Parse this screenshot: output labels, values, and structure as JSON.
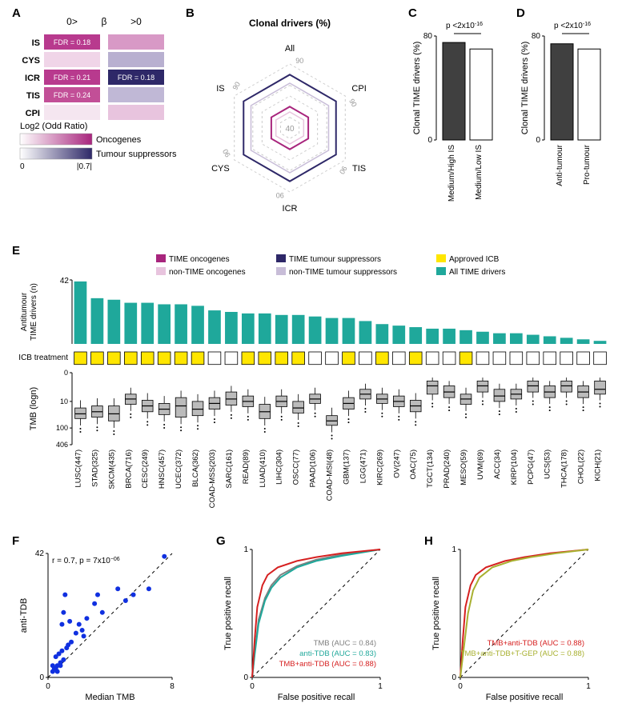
{
  "panelA": {
    "title_left": "0>",
    "title_mid": "β",
    "title_right": ">0",
    "rows": [
      "IS",
      "CYS",
      "ICR",
      "TIS",
      "CPI"
    ],
    "left_colors": [
      "#b83a8e",
      "#f0d5e8",
      "#b83a8e",
      "#c24f97",
      "#f5e6f0"
    ],
    "left_fdr": [
      "FDR = 0.18",
      "",
      "FDR = 0.21",
      "FDR = 0.24",
      ""
    ],
    "right_colors": [
      "#d899c6",
      "#b8b0d0",
      "#2e2868",
      "#c0b8d6",
      "#e8c4de"
    ],
    "right_fdr": [
      "",
      "",
      "FDR = 0.18",
      "",
      ""
    ],
    "legend_title": "Log2 (Odd Ratio)",
    "legend_onco": "Oncogenes",
    "legend_ts": "Tumour suppressors",
    "legend_scale_left": "0",
    "legend_scale_right": "|0.7|",
    "onco_gradient": [
      "#ffffff",
      "#a8257d"
    ],
    "ts_gradient": [
      "#ffffff",
      "#2e2868"
    ]
  },
  "panelB": {
    "title": "Clonal drivers (%)",
    "axes": [
      "All",
      "CPI",
      "TIS",
      "ICR",
      "CYS",
      "IS"
    ],
    "rings": [
      40,
      90
    ],
    "tick_label": "90",
    "center_label": "40",
    "series": [
      {
        "color": "#2e2868",
        "width": 2,
        "values": [
          90,
          90,
          90,
          90,
          90,
          90
        ]
      },
      {
        "color": "#c8bdd8",
        "width": 1.5,
        "values": [
          82,
          82,
          82,
          82,
          82,
          82
        ]
      },
      {
        "color": "#a8257d",
        "width": 2,
        "values": [
          60,
          60,
          60,
          60,
          60,
          60
        ]
      },
      {
        "color": "#e8c4de",
        "width": 1.5,
        "values": [
          55,
          55,
          55,
          55,
          55,
          55
        ]
      }
    ]
  },
  "panelC": {
    "pval": "p <2x10",
    "pval_exp": "-16",
    "ylabel": "Clonal TIME drivers (%)",
    "ymax": 80,
    "bars": [
      {
        "label": "Medium/High IS",
        "value": 75,
        "fill": "#404040"
      },
      {
        "label": "Medium/Low IS",
        "value": 70,
        "fill": "#ffffff"
      }
    ]
  },
  "panelD": {
    "pval": "p <2x10",
    "pval_exp": "-16",
    "ylabel": "Clonal TIME drivers (%)",
    "ymax": 80,
    "bars": [
      {
        "label": "Anti-tumour",
        "value": 74,
        "fill": "#404040"
      },
      {
        "label": "Pro-tumour",
        "value": 70,
        "fill": "#ffffff"
      }
    ]
  },
  "panelE": {
    "ylabel_top": "Antitumour\nTIME drivers (n)",
    "ymax_top": 42,
    "icb_label": "ICB treatment",
    "ylabel_bot": "TMB (logn)",
    "yticks_bot": [
      0,
      10,
      100,
      406
    ],
    "legend": [
      {
        "label": "TIME oncogenes",
        "color": "#a8257d"
      },
      {
        "label": "TIME tumour suppressors",
        "color": "#2e2868"
      },
      {
        "label": "Approved ICB",
        "color": "#ffe600"
      },
      {
        "label": "non-TIME oncogenes",
        "color": "#e8c4de"
      },
      {
        "label": "non-TIME tumour suppressors",
        "color": "#c8bdd8"
      },
      {
        "label": "All TIME drivers",
        "color": "#1fa89b"
      }
    ],
    "categories": [
      "LUSC(447)",
      "STAD(325)",
      "SKCM(435)",
      "BRCA(716)",
      "CESC(249)",
      "HNSC(457)",
      "UCEC(372)",
      "BLCA(362)",
      "COAD-MSS(203)",
      "SARC(161)",
      "READ(89)",
      "LUAD(410)",
      "LIHC(304)",
      "OSCC(77)",
      "PAAD(106)",
      "COAD-MSI(48)",
      "GBM(137)",
      "LGG(471)",
      "KIRC(269)",
      "OV(247)",
      "OAC(75)",
      "TGCT(134)",
      "PRAD(240)",
      "MESO(59)",
      "UVM(69)",
      "ACC(34)",
      "KIRP(104)",
      "PCPG(47)",
      "UCS(53)",
      "THCA(178)",
      "CHOL(22)",
      "KICH(21)"
    ],
    "top_values": [
      41,
      30,
      29,
      27,
      27,
      26,
      26,
      25,
      22,
      21,
      20,
      20,
      19,
      19,
      18,
      17,
      17,
      15,
      13,
      12,
      11,
      10,
      10,
      9,
      8,
      7,
      7,
      6,
      5,
      4,
      3,
      2
    ],
    "icb": [
      1,
      1,
      1,
      1,
      1,
      1,
      1,
      1,
      0,
      0,
      1,
      1,
      1,
      1,
      0,
      0,
      1,
      0,
      1,
      0,
      1,
      0,
      0,
      1,
      0,
      0,
      0,
      0,
      0,
      0,
      0,
      0
    ],
    "tmb_medians": [
      30,
      25,
      30,
      8,
      15,
      20,
      15,
      20,
      12,
      8,
      10,
      25,
      10,
      18,
      8,
      55,
      12,
      5,
      8,
      10,
      15,
      2,
      4,
      8,
      2,
      6,
      5,
      2,
      4,
      2,
      4,
      3
    ],
    "tmb_q1": [
      18,
      15,
      15,
      5,
      9,
      12,
      7,
      10,
      7,
      4,
      6,
      13,
      6,
      10,
      5,
      35,
      7,
      3,
      5,
      6,
      9,
      1,
      2,
      5,
      1,
      3,
      3,
      1,
      2,
      1,
      2,
      1
    ],
    "tmb_q3": [
      45,
      40,
      55,
      13,
      25,
      32,
      40,
      35,
      20,
      14,
      16,
      45,
      16,
      28,
      12,
      80,
      20,
      8,
      12,
      16,
      25,
      5,
      7,
      13,
      4,
      10,
      8,
      4,
      7,
      4,
      7,
      5
    ]
  },
  "panelF": {
    "xlabel": "Median TMB",
    "ylabel": "anti-TDB",
    "corr": "r = 0.7, p = 7x10",
    "corr_exp": "−06",
    "xmax": 8,
    "ymax": 42,
    "points": [
      [
        0.3,
        2
      ],
      [
        0.5,
        3
      ],
      [
        0.6,
        4
      ],
      [
        0.8,
        5
      ],
      [
        0.5,
        7
      ],
      [
        0.7,
        8
      ],
      [
        1.0,
        6
      ],
      [
        0.9,
        9
      ],
      [
        1.2,
        10
      ],
      [
        1.3,
        11
      ],
      [
        1.5,
        12
      ],
      [
        0.3,
        4
      ],
      [
        0.4,
        3
      ],
      [
        0.6,
        2
      ],
      [
        0.8,
        4
      ],
      [
        1.8,
        15
      ],
      [
        2.0,
        18
      ],
      [
        2.2,
        16
      ],
      [
        2.5,
        20
      ],
      [
        2.3,
        14
      ],
      [
        3.0,
        25
      ],
      [
        3.2,
        28
      ],
      [
        3.5,
        22
      ],
      [
        4.5,
        30
      ],
      [
        5.0,
        26
      ],
      [
        5.5,
        28
      ],
      [
        6.5,
        30
      ],
      [
        7.5,
        41
      ],
      [
        0.9,
        18
      ],
      [
        1.0,
        22
      ],
      [
        1.1,
        28
      ],
      [
        1.4,
        19
      ]
    ]
  },
  "panelG": {
    "xlabel": "False positive recall",
    "ylabel": "True positive recall",
    "curves": [
      {
        "label": "TMB (AUC = 0.84)",
        "color": "#808080"
      },
      {
        "label": "anti-TDB (AUC = 0.83)",
        "color": "#1fa89b"
      },
      {
        "label": "TMB+anti-TDB (AUC = 0.88)",
        "color": "#d62020"
      }
    ]
  },
  "panelH": {
    "xlabel": "False positive recall",
    "ylabel": "True positive recall",
    "curves": [
      {
        "label": "TMB+anti-TDB (AUC = 0.88)",
        "color": "#d62020"
      },
      {
        "label": "TMB+anti-TDB+T-GEP (AUC = 0.88)",
        "color": "#a8b030"
      }
    ]
  }
}
